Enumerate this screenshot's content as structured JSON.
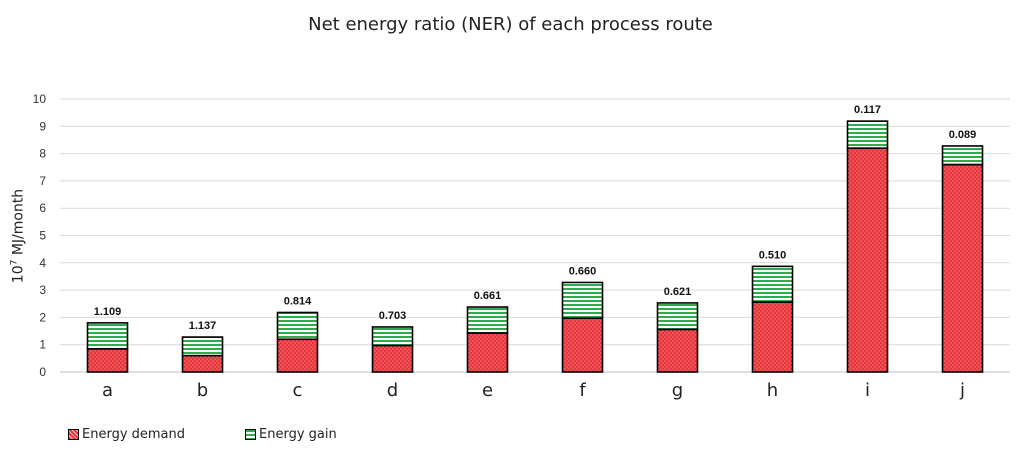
{
  "chart_data": {
    "type": "bar",
    "stacked": true,
    "title": "Net energy ratio (NER) of each process route",
    "ylabel_base": "10",
    "ylabel_exp": "7",
    "ylabel_unit": " MJ/month",
    "ylim": [
      0,
      10
    ],
    "yticks": [
      "0",
      "1",
      "2",
      "3",
      "4",
      "5",
      "6",
      "7",
      "8",
      "9",
      "10"
    ],
    "grid": true,
    "legend_position": "bottom-left",
    "categories": [
      "a",
      "b",
      "c",
      "d",
      "e",
      "f",
      "g",
      "h",
      "i",
      "j"
    ],
    "series": [
      {
        "name": "Energy demand",
        "color": "#e8343a",
        "pattern": "dotted",
        "values": [
          0.85,
          0.6,
          1.2,
          0.97,
          1.43,
          1.97,
          1.56,
          2.56,
          8.2,
          7.6
        ]
      },
      {
        "name": "Energy gain",
        "color": "#2eab4f",
        "pattern": "horizontal-stripes",
        "values": [
          0.95,
          0.68,
          0.98,
          0.68,
          0.95,
          1.31,
          0.97,
          1.31,
          0.99,
          0.68
        ]
      }
    ],
    "data_labels": [
      "1.109",
      "1.137",
      "0.814",
      "0.703",
      "0.661",
      "0.660",
      "0.621",
      "0.510",
      "0.117",
      "0.089"
    ]
  }
}
